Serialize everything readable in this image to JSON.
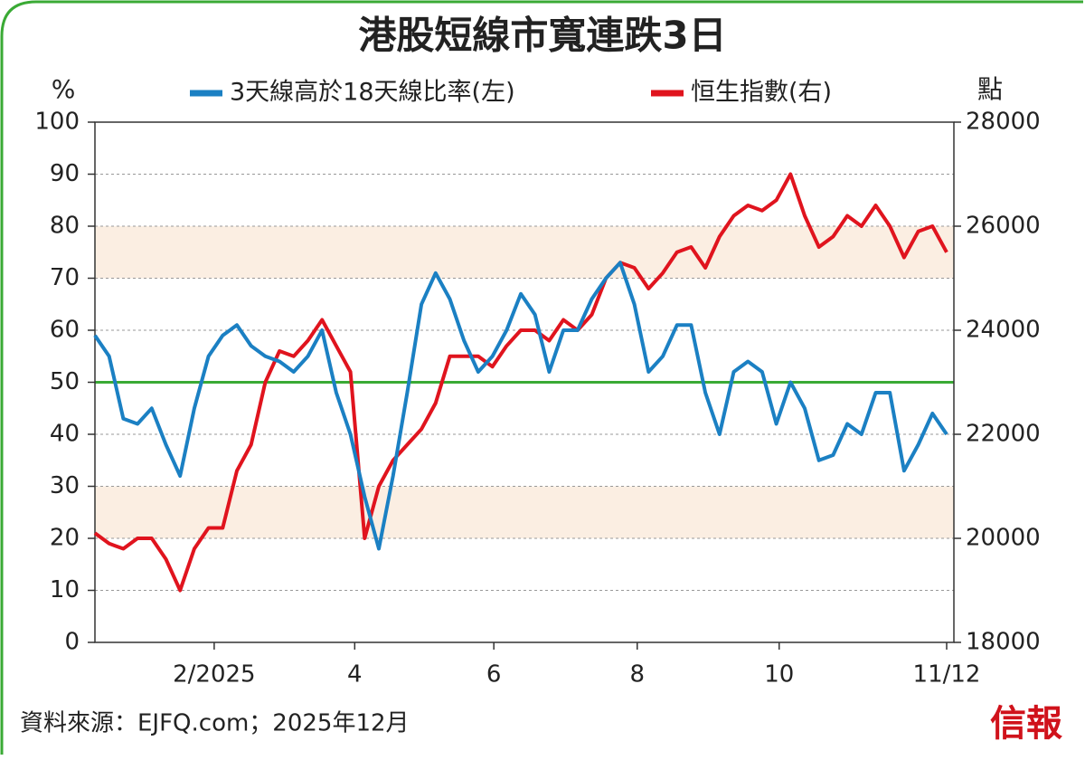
{
  "chart_data": {
    "type": "line",
    "title": "港股短線市寬連跌3日",
    "ylabel": "%",
    "y2label": "點",
    "source": "資料來源：EJFQ.com；2025年12月",
    "logo": "信報",
    "x": [
      0,
      1,
      2,
      3,
      4,
      5,
      6,
      7,
      8,
      9,
      10,
      11,
      12,
      13,
      14,
      15,
      16,
      17,
      18,
      19,
      20,
      21,
      22,
      23,
      24,
      25,
      26,
      27,
      28,
      29,
      30,
      31,
      32,
      33,
      34,
      35,
      36,
      37,
      38,
      39,
      40,
      41,
      42,
      43,
      44,
      45,
      46,
      47,
      48,
      49,
      50,
      51,
      52,
      53,
      54,
      55,
      56,
      57,
      58,
      59,
      60
    ],
    "xlim": [
      0,
      60
    ],
    "xticks": [
      {
        "value": 8.4,
        "label": "2/2025"
      },
      {
        "value": 18.3,
        "label": "4"
      },
      {
        "value": 28.1,
        "label": "6"
      },
      {
        "value": 38.2,
        "label": "8"
      },
      {
        "value": 48.2,
        "label": "10"
      },
      {
        "value": 60,
        "label": "11/12"
      }
    ],
    "ylim": [
      0,
      100
    ],
    "yticks": [
      0,
      10,
      20,
      30,
      40,
      50,
      60,
      70,
      80,
      90,
      100
    ],
    "y2lim": [
      18000,
      28000
    ],
    "y2ticks": [
      18000,
      20000,
      22000,
      24000,
      26000,
      28000
    ],
    "grid": true,
    "bands": [
      [
        20,
        30
      ],
      [
        70,
        80
      ]
    ],
    "band_color": "#fbeee2",
    "reference_line": 50,
    "reference_color": "#3aaa35",
    "series": [
      {
        "name": "3天線高於18天線比率(左)",
        "color": "#1b80c3",
        "values": [
          59,
          55,
          43,
          42,
          45,
          38,
          32,
          45,
          55,
          59,
          61,
          57,
          55,
          54,
          52,
          55,
          60,
          48,
          40,
          28,
          18,
          32,
          48,
          65,
          71,
          66,
          58,
          52,
          55,
          60,
          67,
          63,
          52,
          60,
          60,
          66,
          70,
          73,
          65,
          52,
          55,
          61,
          61,
          48,
          40,
          52,
          54,
          52,
          42,
          50,
          45,
          35,
          36,
          42,
          40,
          48,
          48,
          33,
          38,
          44,
          40
        ]
      },
      {
        "name": "恒生指數(右)",
        "color": "#e0141e",
        "axis": "y2",
        "values": [
          20100,
          19900,
          19800,
          20000,
          20000,
          19600,
          19000,
          19800,
          20200,
          20200,
          21300,
          21800,
          23000,
          23600,
          23500,
          23800,
          24200,
          23700,
          23200,
          20000,
          21000,
          21500,
          21800,
          22100,
          22600,
          23500,
          23500,
          23500,
          23300,
          23700,
          24000,
          24000,
          23800,
          24200,
          24000,
          24300,
          25000,
          25300,
          25200,
          24800,
          25100,
          25500,
          25600,
          25200,
          25800,
          26200,
          26400,
          26300,
          26500,
          27000,
          26200,
          25600,
          25800,
          26200,
          26000,
          26400,
          26000,
          25400,
          25900,
          26000,
          25500
        ]
      }
    ]
  }
}
